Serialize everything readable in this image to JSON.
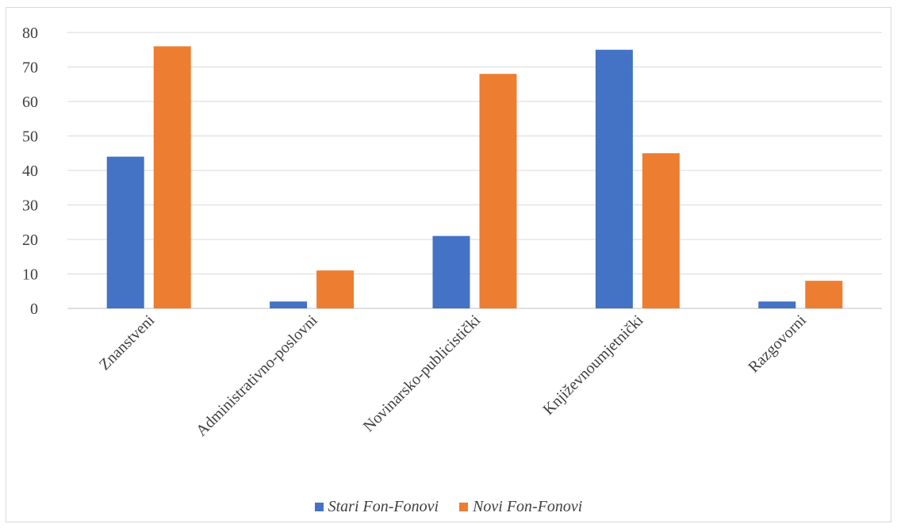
{
  "chart_data": {
    "type": "bar",
    "categories": [
      "Znanstveni",
      "Administrativno-poslovni",
      "Novinarsko-publicistički",
      "Književnoumjetnički",
      "Razgovorni"
    ],
    "series": [
      {
        "name": "Stari Fon-Fonovi",
        "color": "#4472C4",
        "values": [
          44,
          2,
          21,
          75,
          2
        ]
      },
      {
        "name": "Novi Fon-Fonovi",
        "color": "#ED7D31",
        "values": [
          76,
          11,
          68,
          45,
          8
        ]
      }
    ],
    "ylim": [
      0,
      80
    ],
    "yticks": [
      0,
      10,
      20,
      30,
      40,
      50,
      60,
      70,
      80
    ],
    "grid": true,
    "legend_position": "bottom"
  }
}
